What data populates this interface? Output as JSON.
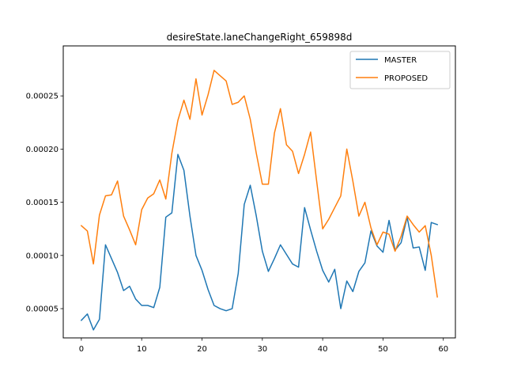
{
  "chart_data": {
    "type": "line",
    "title": "desireState.laneChangeRight_659898d",
    "xlabel": "",
    "ylabel": "",
    "xlim": [
      -3,
      62
    ],
    "ylim": [
      2.25e-05,
      0.000297
    ],
    "xticks": [
      0,
      10,
      20,
      30,
      40,
      50,
      60
    ],
    "yticks": [
      5e-05,
      0.0001,
      0.00015,
      0.0002,
      0.00025
    ],
    "ytick_labels": [
      "0.00005",
      "0.00010",
      "0.00015",
      "0.00020",
      "0.00025"
    ],
    "grid": false,
    "legend_position": "upper right",
    "x": [
      0,
      1,
      2,
      3,
      4,
      5,
      6,
      7,
      8,
      9,
      10,
      11,
      12,
      13,
      14,
      15,
      16,
      17,
      18,
      19,
      20,
      21,
      22,
      23,
      24,
      25,
      26,
      27,
      28,
      29,
      30,
      31,
      32,
      33,
      34,
      35,
      36,
      37,
      38,
      39,
      40,
      41,
      42,
      43,
      44,
      45,
      46,
      47,
      48,
      49,
      50,
      51,
      52,
      53,
      54,
      55,
      56,
      57,
      58,
      59
    ],
    "series": [
      {
        "name": "MASTER",
        "color": "#1f77b4",
        "values": [
          3.9e-05,
          4.5e-05,
          3e-05,
          4e-05,
          0.00011,
          9.7e-05,
          8.4e-05,
          6.7e-05,
          7.1e-05,
          5.9e-05,
          5.3e-05,
          5.3e-05,
          5.1e-05,
          7e-05,
          0.000136,
          0.00014,
          0.000195,
          0.00018,
          0.000137,
          0.0001,
          8.6e-05,
          6.8e-05,
          5.3e-05,
          5e-05,
          4.8e-05,
          5e-05,
          8.3e-05,
          0.000148,
          0.000166,
          0.000137,
          0.000104,
          8.5e-05,
          9.7e-05,
          0.00011,
          0.000101,
          9.2e-05,
          8.9e-05,
          0.000145,
          0.000124,
          0.000104,
          8.6e-05,
          7.5e-05,
          8.7e-05,
          5e-05,
          7.6e-05,
          6.6e-05,
          8.5e-05,
          9.3e-05,
          0.000123,
          0.000109,
          0.000103,
          0.000133,
          0.000105,
          0.000112,
          0.000136,
          0.000107,
          0.000108,
          8.6e-05,
          0.000131,
          0.000129
        ]
      },
      {
        "name": "PROPOSED",
        "color": "#ff7f0e",
        "values": [
          0.000128,
          0.000123,
          9.2e-05,
          0.000138,
          0.000156,
          0.000157,
          0.00017,
          0.000137,
          0.000124,
          0.00011,
          0.000143,
          0.000154,
          0.000158,
          0.000171,
          0.000153,
          0.000196,
          0.000227,
          0.000246,
          0.000228,
          0.000266,
          0.000232,
          0.000251,
          0.000274,
          0.000269,
          0.000264,
          0.000242,
          0.000244,
          0.00025,
          0.000228,
          0.000196,
          0.000167,
          0.000167,
          0.000215,
          0.000238,
          0.000204,
          0.000198,
          0.000177,
          0.000195,
          0.000216,
          0.00017,
          0.000125,
          0.000134,
          0.000145,
          0.000156,
          0.0002,
          0.00017,
          0.000137,
          0.00015,
          0.000126,
          0.00011,
          0.000122,
          0.00012,
          0.000104,
          0.000118,
          0.000137,
          0.000129,
          0.000122,
          0.000128,
          0.0001,
          6.1e-05
        ]
      }
    ]
  }
}
